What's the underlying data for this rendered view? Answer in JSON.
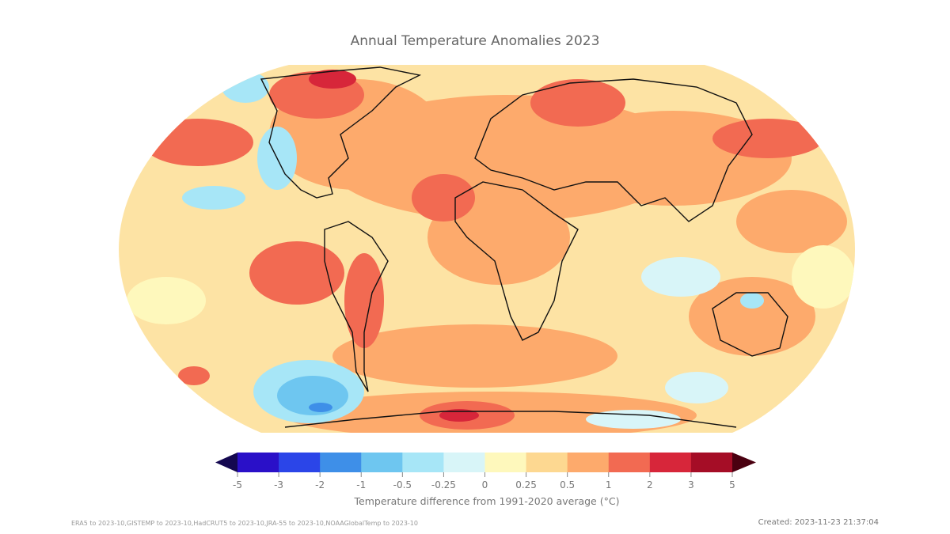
{
  "title": "Annual Temperature Anomalies 2023",
  "colorbar": {
    "label": "Temperature difference from 1991-2020 average (°C)",
    "ticks": [
      "-5",
      "-3",
      "-2",
      "-1",
      "-0.5",
      "-0.25",
      "0",
      "0.25",
      "0.5",
      "1",
      "2",
      "3",
      "5"
    ],
    "colors": [
      "#2a10c8",
      "#2b45e8",
      "#3e8fe8",
      "#6ec6f0",
      "#a7e6f7",
      "#d8f5f8",
      "#fef8bc",
      "#fdd891",
      "#fdaa6c",
      "#f26a52",
      "#d7263a",
      "#a50d26"
    ],
    "under_color": "#140850",
    "over_color": "#4a0010"
  },
  "footer": {
    "sources": "ERA5 to 2023-10,GISTEMP to 2023-10,HadCRUT5 to 2023-10,JRA-55 to 2023-10,NOAAGlobalTemp to 2023-10",
    "created": "Created: 2023-11-23 21:37:04"
  }
}
